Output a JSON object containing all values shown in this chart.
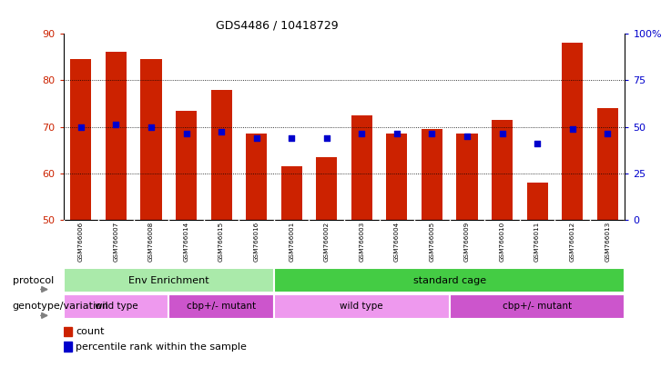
{
  "title": "GDS4486 / 10418729",
  "samples": [
    "GSM766006",
    "GSM766007",
    "GSM766008",
    "GSM766014",
    "GSM766015",
    "GSM766016",
    "GSM766001",
    "GSM766002",
    "GSM766003",
    "GSM766004",
    "GSM766005",
    "GSM766009",
    "GSM766010",
    "GSM766011",
    "GSM766012",
    "GSM766013"
  ],
  "counts": [
    84.5,
    86.0,
    84.5,
    73.5,
    78.0,
    68.5,
    61.5,
    63.5,
    72.5,
    68.5,
    69.5,
    68.5,
    71.5,
    58.0,
    88.0,
    74.0
  ],
  "percentiles": [
    70.0,
    70.5,
    70.0,
    68.5,
    69.0,
    67.5,
    67.5,
    67.5,
    68.5,
    68.5,
    68.5,
    68.0,
    68.5,
    66.5,
    69.5,
    68.5
  ],
  "ylim_left": [
    50,
    90
  ],
  "ylim_right": [
    0,
    100
  ],
  "yticks_left": [
    50,
    60,
    70,
    80,
    90
  ],
  "yticks_right": [
    0,
    25,
    50,
    75,
    100
  ],
  "ytick_labels_right": [
    "0",
    "25",
    "50",
    "75",
    "100%"
  ],
  "bar_color": "#cc2200",
  "dot_color": "#0000cc",
  "bg_color": "#ffffff",
  "bar_bottom": 50,
  "protocol_labels": [
    "Env Enrichment",
    "standard cage"
  ],
  "protocol_color_light": "#aaeaaa",
  "protocol_color_dark": "#44cc44",
  "genotype_color_wt": "#ee99ee",
  "genotype_color_mut": "#cc55cc",
  "label_protocol": "protocol",
  "label_genotype": "genotype/variation",
  "legend_count": "count",
  "legend_percentile": "percentile rank within the sample",
  "tick_label_color": "#cc2200",
  "right_tick_color": "#0000cc",
  "xtick_bg": "#cccccc",
  "grid_yticks": [
    60,
    70,
    80
  ]
}
